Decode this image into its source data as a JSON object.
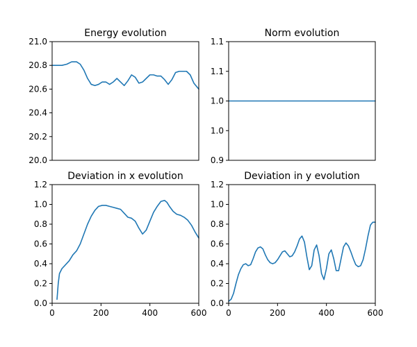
{
  "figure": {
    "background": "#ffffff",
    "line_color": "#1f77b4"
  },
  "chart_data": [
    {
      "type": "line",
      "title": "Energy evolution",
      "xlim": [
        0,
        600
      ],
      "ylim": [
        20.0,
        21.0
      ],
      "yticks": [
        "20.0",
        "20.2",
        "20.4",
        "20.6",
        "20.8",
        "21.0"
      ],
      "xticks": [],
      "grid": false,
      "series": [
        {
          "color": "#1f77b4",
          "x": [
            0,
            20,
            40,
            60,
            80,
            100,
            115,
            130,
            145,
            160,
            175,
            190,
            205,
            220,
            235,
            250,
            265,
            280,
            295,
            310,
            325,
            340,
            355,
            370,
            385,
            400,
            415,
            430,
            445,
            460,
            475,
            490,
            505,
            520,
            535,
            550,
            565,
            580,
            600
          ],
          "y": [
            20.8,
            20.8,
            20.8,
            20.81,
            20.83,
            20.83,
            20.81,
            20.76,
            20.69,
            20.64,
            20.63,
            20.64,
            20.66,
            20.66,
            20.64,
            20.66,
            20.69,
            20.66,
            20.63,
            20.67,
            20.72,
            20.7,
            20.65,
            20.66,
            20.69,
            20.72,
            20.72,
            20.71,
            20.71,
            20.68,
            20.64,
            20.68,
            20.74,
            20.75,
            20.75,
            20.75,
            20.72,
            20.65,
            20.6
          ]
        }
      ]
    },
    {
      "type": "line",
      "title": "Norm evolution",
      "xlim": [
        0,
        600
      ],
      "ylim": [
        0.9,
        1.1
      ],
      "yticks": [
        "0.9",
        "1.0",
        "1.0",
        "1.1",
        "1.1"
      ],
      "xticks": [],
      "grid": false,
      "series": [
        {
          "color": "#1f77b4",
          "x": [
            0,
            600
          ],
          "y": [
            1.0,
            1.0
          ]
        }
      ]
    },
    {
      "type": "line",
      "title": "Deviation in x evolution",
      "xlim": [
        0,
        600
      ],
      "ylim": [
        0.0,
        1.2
      ],
      "yticks": [
        "0.0",
        "0.2",
        "0.4",
        "0.6",
        "0.8",
        "1.0",
        "1.2"
      ],
      "xticks": [
        "0",
        "200",
        "400",
        "600"
      ],
      "grid": false,
      "series": [
        {
          "color": "#1f77b4",
          "x": [
            20,
            25,
            30,
            40,
            55,
            70,
            85,
            100,
            115,
            130,
            145,
            160,
            175,
            190,
            205,
            220,
            235,
            250,
            265,
            280,
            295,
            310,
            325,
            340,
            355,
            370,
            385,
            400,
            415,
            430,
            445,
            460,
            470,
            480,
            495,
            510,
            525,
            540,
            555,
            570,
            585,
            600
          ],
          "y": [
            0.04,
            0.2,
            0.3,
            0.35,
            0.39,
            0.43,
            0.49,
            0.53,
            0.6,
            0.7,
            0.8,
            0.88,
            0.94,
            0.98,
            0.99,
            0.99,
            0.98,
            0.97,
            0.96,
            0.95,
            0.91,
            0.87,
            0.86,
            0.83,
            0.76,
            0.7,
            0.74,
            0.83,
            0.92,
            0.98,
            1.03,
            1.04,
            1.02,
            0.98,
            0.93,
            0.9,
            0.89,
            0.87,
            0.84,
            0.79,
            0.72,
            0.66
          ]
        }
      ]
    },
    {
      "type": "line",
      "title": "Deviation in y evolution",
      "xlim": [
        0,
        600
      ],
      "ylim": [
        0.0,
        1.2
      ],
      "yticks": [
        "0.0",
        "0.2",
        "0.4",
        "0.6",
        "0.8",
        "1.0",
        "1.2"
      ],
      "xticks": [
        "0",
        "200",
        "400",
        "600"
      ],
      "grid": false,
      "series": [
        {
          "color": "#1f77b4",
          "x": [
            0,
            10,
            20,
            30,
            40,
            50,
            60,
            70,
            80,
            90,
            100,
            110,
            120,
            130,
            140,
            150,
            160,
            170,
            180,
            190,
            200,
            210,
            220,
            230,
            240,
            250,
            260,
            270,
            280,
            290,
            300,
            310,
            320,
            330,
            340,
            350,
            360,
            370,
            380,
            390,
            400,
            410,
            420,
            430,
            440,
            450,
            460,
            470,
            480,
            490,
            500,
            510,
            520,
            530,
            540,
            550,
            560,
            570,
            580,
            590,
            600
          ],
          "y": [
            0.02,
            0.04,
            0.1,
            0.2,
            0.29,
            0.35,
            0.39,
            0.4,
            0.38,
            0.39,
            0.45,
            0.52,
            0.56,
            0.57,
            0.55,
            0.49,
            0.44,
            0.41,
            0.4,
            0.41,
            0.44,
            0.48,
            0.52,
            0.53,
            0.5,
            0.47,
            0.48,
            0.52,
            0.58,
            0.65,
            0.68,
            0.62,
            0.47,
            0.34,
            0.38,
            0.54,
            0.59,
            0.48,
            0.3,
            0.24,
            0.35,
            0.5,
            0.54,
            0.45,
            0.33,
            0.33,
            0.45,
            0.57,
            0.61,
            0.58,
            0.52,
            0.45,
            0.39,
            0.37,
            0.38,
            0.44,
            0.55,
            0.68,
            0.79,
            0.82,
            0.82
          ]
        }
      ]
    }
  ]
}
